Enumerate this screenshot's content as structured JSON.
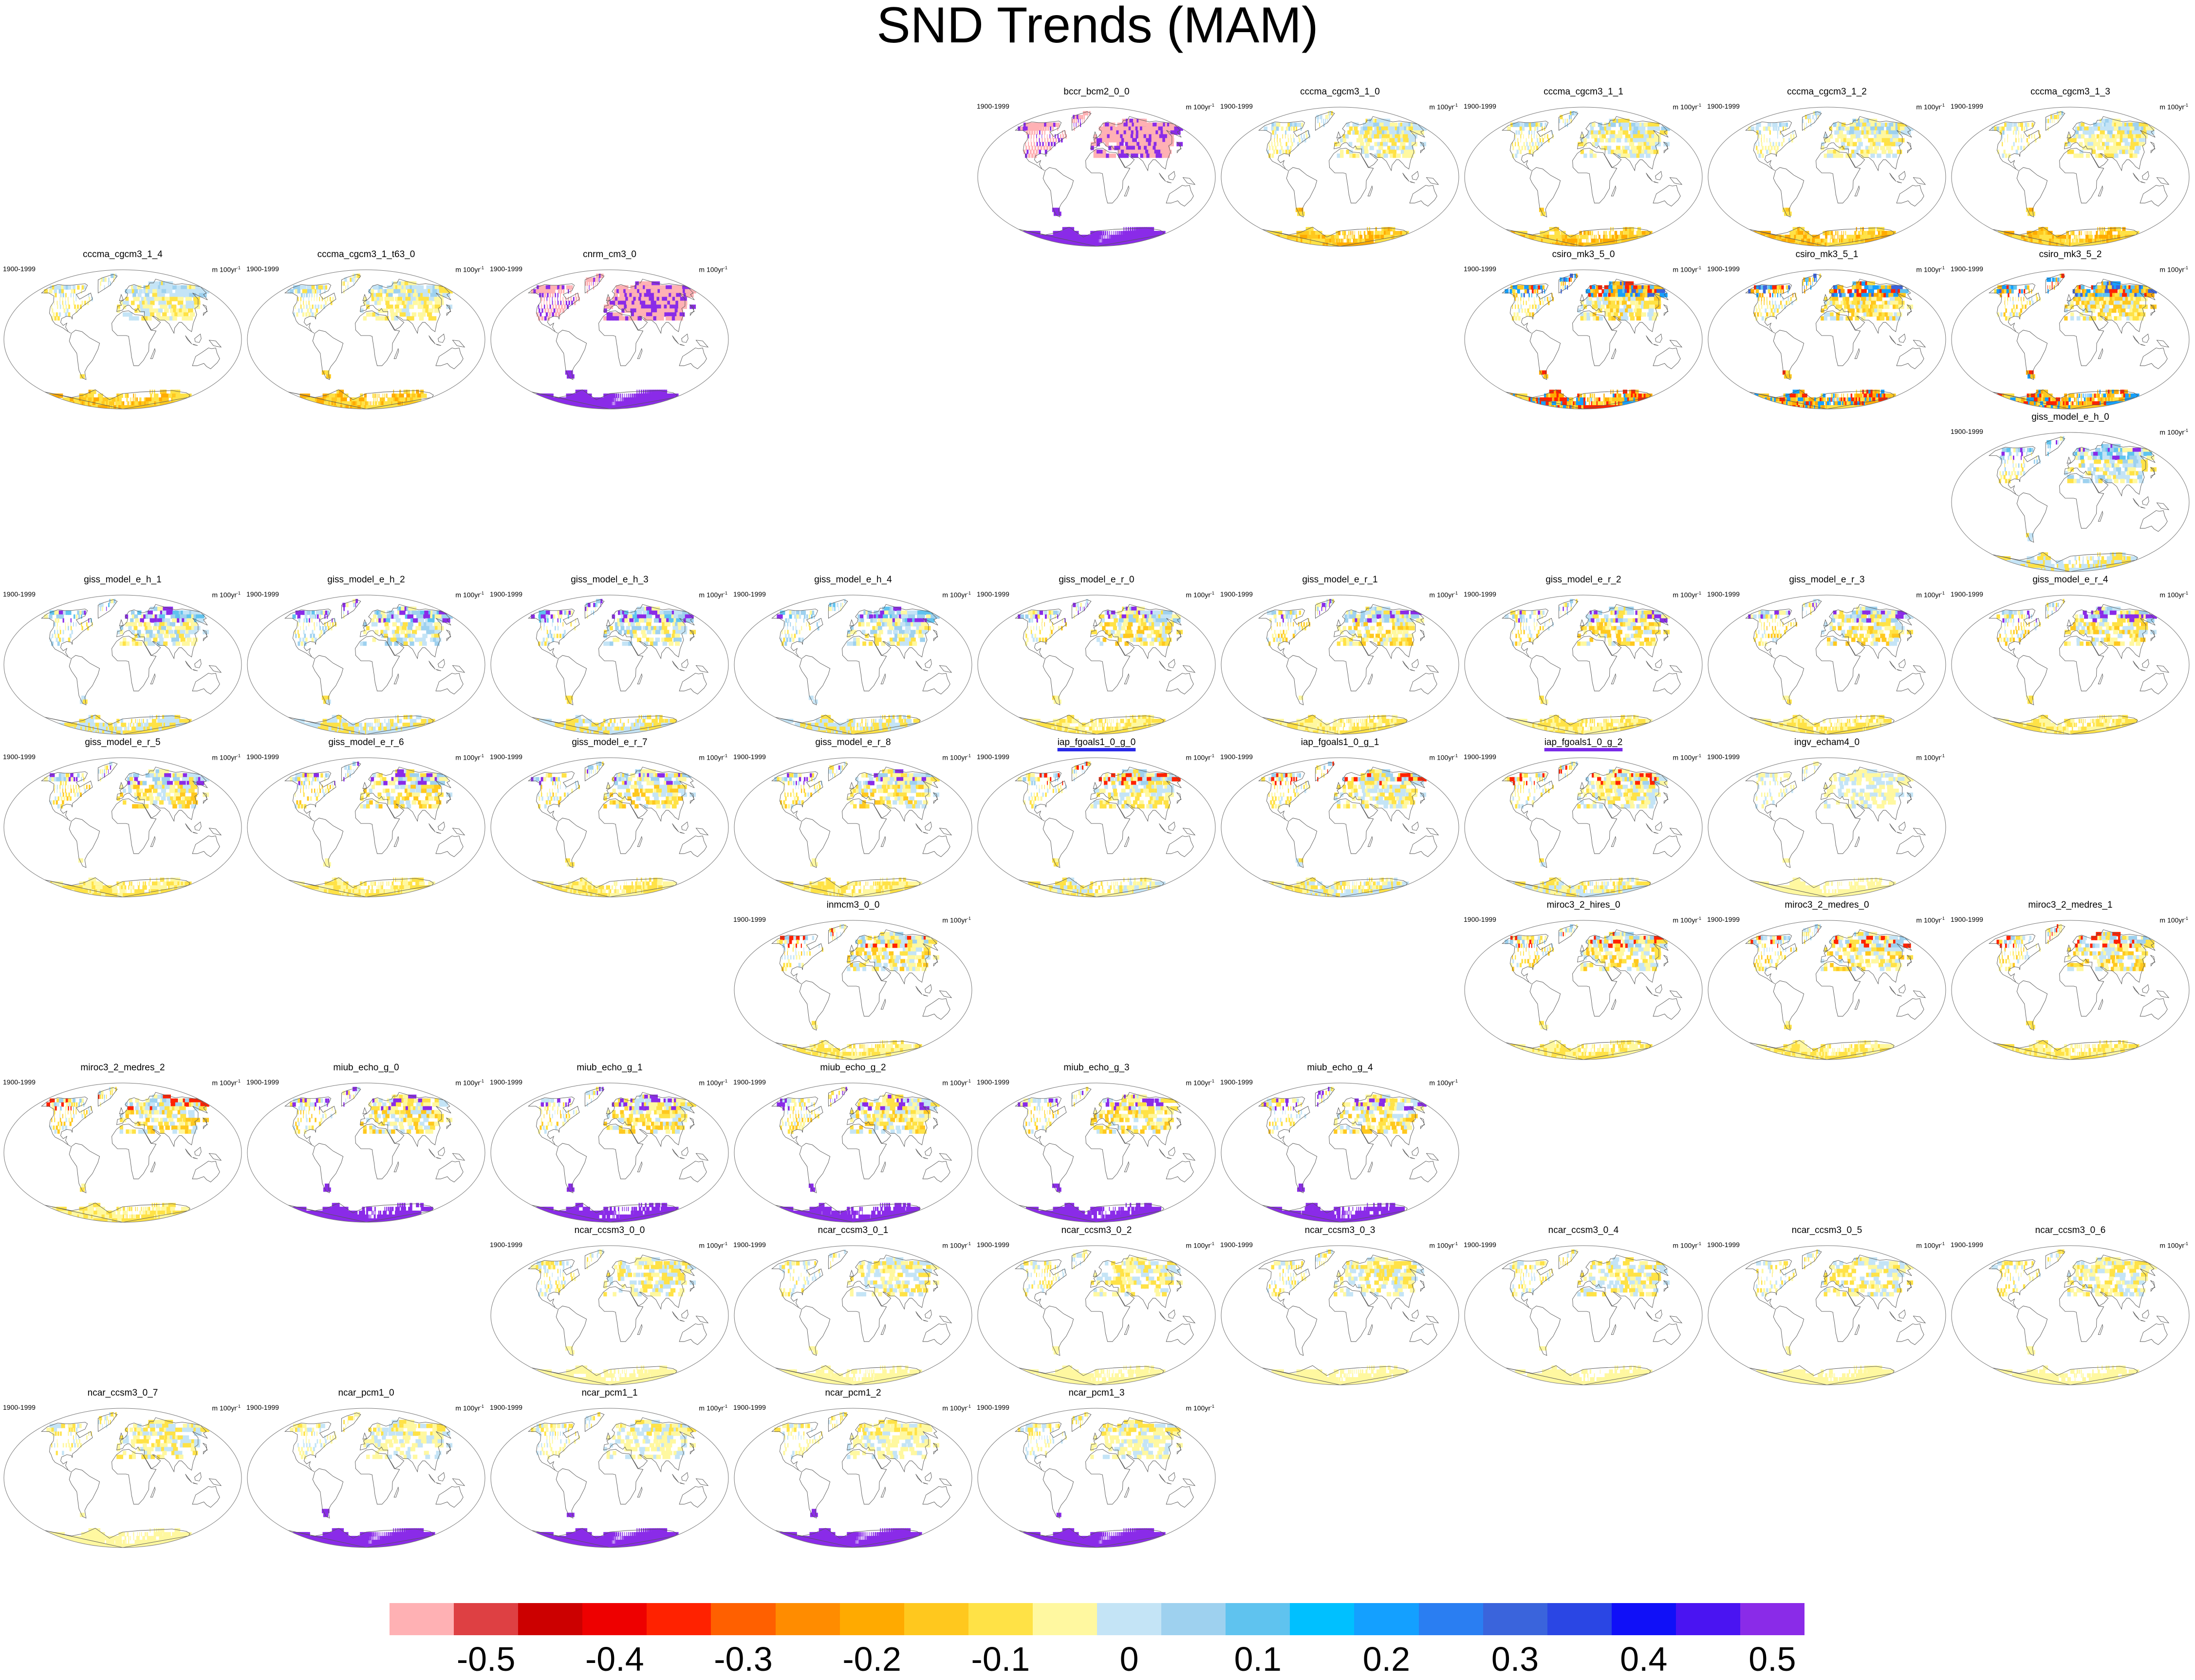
{
  "title": "SND Trends (MAM)",
  "period": "1900-1999",
  "units": "m 100yr",
  "units_exponent": "-1",
  "colorbar": {
    "colors": [
      "#ffb1b4",
      "#de4043",
      "#cc0000",
      "#ee0000",
      "#ff2200",
      "#ff6000",
      "#ff8c00",
      "#ffaa00",
      "#ffc81e",
      "#ffe246",
      "#fff8a0",
      "#c4e4f6",
      "#9ed1ef",
      "#5fc3ef",
      "#00c0ff",
      "#14a0ff",
      "#2a7ef2",
      "#3a64dc",
      "#2a46e4",
      "#1010f8",
      "#4a14f2",
      "#8a2be8"
    ],
    "tick_labels": [
      "-0.5",
      "-0.4",
      "-0.3",
      "-0.2",
      "-0.1",
      "0",
      "0.1",
      "0.2",
      "0.3",
      "0.4",
      "0.5"
    ]
  },
  "panels": [
    {
      "name": "bccr_bcm2_0_0",
      "pattern": "pinkpurple"
    },
    {
      "name": "cccma_cgcm3_1_0",
      "pattern": "cccma"
    },
    {
      "name": "cccma_cgcm3_1_1",
      "pattern": "cccma"
    },
    {
      "name": "cccma_cgcm3_1_2",
      "pattern": "cccma"
    },
    {
      "name": "cccma_cgcm3_1_3",
      "pattern": "cccma"
    },
    {
      "name": "cccma_cgcm3_1_4",
      "pattern": "cccma"
    },
    {
      "name": "cccma_cgcm3_1_t63_0",
      "pattern": "cccma"
    },
    {
      "name": "cnrm_cm3_0",
      "pattern": "pinkpurple"
    },
    {
      "name": "csiro_mk3_5_0",
      "pattern": "csiro"
    },
    {
      "name": "csiro_mk3_5_1",
      "pattern": "csiro"
    },
    {
      "name": "csiro_mk3_5_2",
      "pattern": "csiro"
    },
    {
      "name": "giss_model_e_h_0",
      "pattern": "gissh"
    },
    {
      "name": "giss_model_e_h_1",
      "pattern": "gissh"
    },
    {
      "name": "giss_model_e_h_2",
      "pattern": "gissh"
    },
    {
      "name": "giss_model_e_h_3",
      "pattern": "gissh"
    },
    {
      "name": "giss_model_e_h_4",
      "pattern": "gissh"
    },
    {
      "name": "giss_model_e_r_0",
      "pattern": "gissr"
    },
    {
      "name": "giss_model_e_r_1",
      "pattern": "gissr"
    },
    {
      "name": "giss_model_e_r_2",
      "pattern": "gissr"
    },
    {
      "name": "giss_model_e_r_3",
      "pattern": "gissr"
    },
    {
      "name": "giss_model_e_r_4",
      "pattern": "gissr"
    },
    {
      "name": "giss_model_e_r_5",
      "pattern": "gissr"
    },
    {
      "name": "giss_model_e_r_6",
      "pattern": "gissr"
    },
    {
      "name": "giss_model_e_r_7",
      "pattern": "gissr"
    },
    {
      "name": "giss_model_e_r_8",
      "pattern": "gissr"
    },
    {
      "name": "iap_fgoals1_0_g_0",
      "pattern": "iap",
      "underline": "blue"
    },
    {
      "name": "iap_fgoals1_0_g_1",
      "pattern": "iap"
    },
    {
      "name": "iap_fgoals1_0_g_2",
      "pattern": "iap",
      "underline": "purple"
    },
    {
      "name": "ingv_echam4_0",
      "pattern": "ingv"
    },
    {
      "name": "inmcm3_0_0",
      "pattern": "miroc"
    },
    {
      "name": "miroc3_2_hires_0",
      "pattern": "miroc"
    },
    {
      "name": "miroc3_2_medres_0",
      "pattern": "miroc"
    },
    {
      "name": "miroc3_2_medres_1",
      "pattern": "miroc"
    },
    {
      "name": "miroc3_2_medres_2",
      "pattern": "miroc"
    },
    {
      "name": "miub_echo_g_0",
      "pattern": "miub"
    },
    {
      "name": "miub_echo_g_1",
      "pattern": "miub"
    },
    {
      "name": "miub_echo_g_2",
      "pattern": "miub"
    },
    {
      "name": "miub_echo_g_3",
      "pattern": "miub"
    },
    {
      "name": "miub_echo_g_4",
      "pattern": "miub"
    },
    {
      "name": "ncar_ccsm3_0_0",
      "pattern": "ncar"
    },
    {
      "name": "ncar_ccsm3_0_1",
      "pattern": "ncar"
    },
    {
      "name": "ncar_ccsm3_0_2",
      "pattern": "ncar"
    },
    {
      "name": "ncar_ccsm3_0_3",
      "pattern": "ncar"
    },
    {
      "name": "ncar_ccsm3_0_4",
      "pattern": "ncar"
    },
    {
      "name": "ncar_ccsm3_0_5",
      "pattern": "ncar"
    },
    {
      "name": "ncar_ccsm3_0_6",
      "pattern": "ncar"
    },
    {
      "name": "ncar_ccsm3_0_7",
      "pattern": "ncar"
    },
    {
      "name": "ncar_pcm1_0",
      "pattern": "pcm"
    },
    {
      "name": "ncar_pcm1_1",
      "pattern": "pcm"
    },
    {
      "name": "ncar_pcm1_2",
      "pattern": "pcm"
    },
    {
      "name": "ncar_pcm1_3",
      "pattern": "pcm"
    }
  ]
}
